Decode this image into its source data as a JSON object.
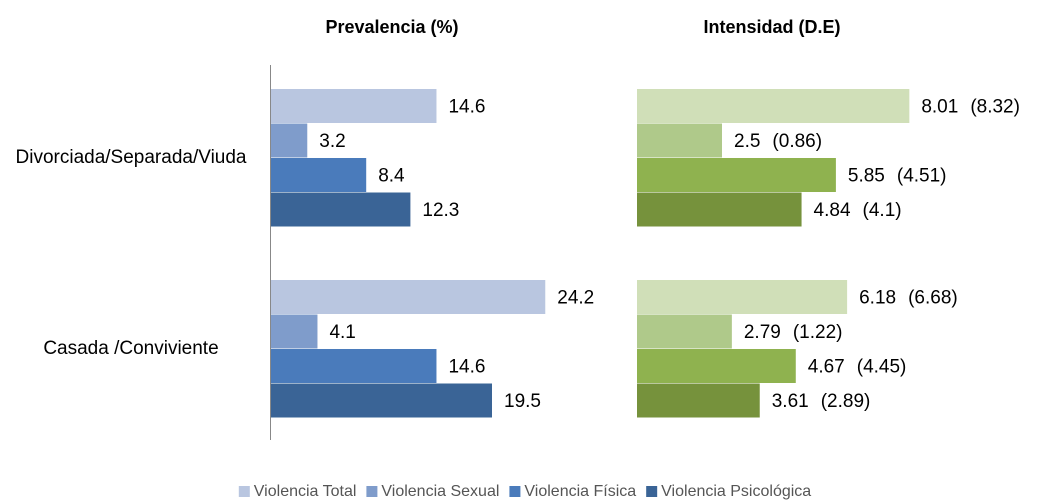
{
  "chart_data": [
    {
      "type": "bar",
      "orientation": "horizontal",
      "title": "Prevalencia (%)",
      "categories": [
        "Divorciada/Separada/Viuda",
        "Casada /Conviviente"
      ],
      "xlim": [
        0,
        30
      ],
      "series": [
        {
          "name": "Violencia Total",
          "color": "#b9c6e0",
          "values": [
            14.6,
            24.2
          ]
        },
        {
          "name": "Violencia Sexual",
          "color": "#7f9ccb",
          "values": [
            3.2,
            4.1
          ]
        },
        {
          "name": "Violencia Física",
          "color": "#4a7bbb",
          "values": [
            8.4,
            14.6
          ]
        },
        {
          "name": "Violencia Psicológica",
          "color": "#3a6496",
          "values": [
            12.3,
            19.5
          ]
        }
      ]
    },
    {
      "type": "bar",
      "orientation": "horizontal",
      "title": "Intensidad (D.E)",
      "xlim": [
        0,
        10
      ],
      "series": [
        {
          "color": "#d0dfb8",
          "values": [
            8.01,
            6.18
          ],
          "errors": [
            8.32,
            6.68
          ],
          "error_labels": [
            "(8.32)",
            "(6.68)"
          ]
        },
        {
          "color": "#afc98a",
          "values": [
            2.5,
            2.79
          ],
          "errors": [
            0.86,
            1.22
          ],
          "error_labels": [
            "(0.86)",
            "(1.22)"
          ]
        },
        {
          "color": "#8fb24f",
          "values": [
            5.85,
            4.67
          ],
          "errors": [
            4.51,
            4.45
          ],
          "error_labels": [
            "(4.51)",
            "(4.45)"
          ]
        },
        {
          "color": "#76923c",
          "values": [
            4.84,
            3.61
          ],
          "errors": [
            4.1,
            2.89
          ],
          "error_labels": [
            "(4.1)",
            "(2.89)"
          ]
        }
      ]
    }
  ]
}
